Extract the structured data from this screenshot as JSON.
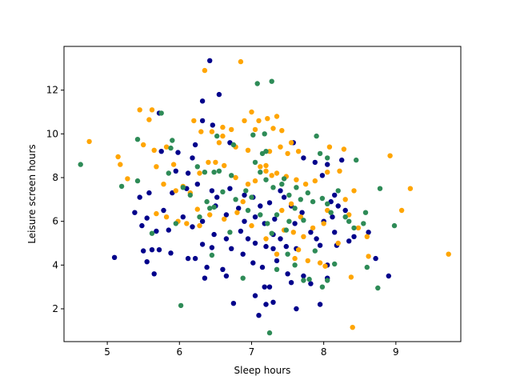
{
  "chart_data": {
    "type": "scatter",
    "title": "",
    "xlabel": "Sleep hours",
    "ylabel": "Leisure screen hours",
    "xlim": [
      4.4,
      9.9
    ],
    "ylim": [
      0.5,
      14.0
    ],
    "xticks": [
      5,
      6,
      7,
      8,
      9
    ],
    "yticks": [
      2,
      4,
      6,
      8,
      10,
      12
    ],
    "grid": false,
    "legend": "none",
    "series": [
      {
        "color": "#00008b",
        "points": [
          [
            6.42,
            13.35
          ],
          [
            6.55,
            11.8
          ],
          [
            6.32,
            11.5
          ],
          [
            5.72,
            10.95
          ],
          [
            6.32,
            10.6
          ],
          [
            6.46,
            10.4
          ],
          [
            5.75,
            9.2
          ],
          [
            6.22,
            9.5
          ],
          [
            6.7,
            9.6
          ],
          [
            5.98,
            9.15
          ],
          [
            6.18,
            8.9
          ],
          [
            5.95,
            8.3
          ],
          [
            6.12,
            8.2
          ],
          [
            5.58,
            7.3
          ],
          [
            5.9,
            7.3
          ],
          [
            6.1,
            7.5
          ],
          [
            6.25,
            7.7
          ],
          [
            6.45,
            7.4
          ],
          [
            6.52,
            7.1
          ],
          [
            6.7,
            7.5
          ],
          [
            5.45,
            7.1
          ],
          [
            5.38,
            6.4
          ],
          [
            5.55,
            6.15
          ],
          [
            5.78,
            6.5
          ],
          [
            6.05,
            6.2
          ],
          [
            6.32,
            6.0
          ],
          [
            6.5,
            6.7
          ],
          [
            6.65,
            6.3
          ],
          [
            6.82,
            6.6
          ],
          [
            5.48,
            5.8
          ],
          [
            5.68,
            5.55
          ],
          [
            5.85,
            5.6
          ],
          [
            6.18,
            5.75
          ],
          [
            6.48,
            5.4
          ],
          [
            6.65,
            5.2
          ],
          [
            6.85,
            5.55
          ],
          [
            6.32,
            4.95
          ],
          [
            6.45,
            4.8
          ],
          [
            6.72,
            4.75
          ],
          [
            5.5,
            4.65
          ],
          [
            5.62,
            4.7
          ],
          [
            5.72,
            4.7
          ],
          [
            5.88,
            4.55
          ],
          [
            6.12,
            4.3
          ],
          [
            6.22,
            4.3
          ],
          [
            6.38,
            3.9
          ],
          [
            6.35,
            3.4
          ],
          [
            6.6,
            3.8
          ],
          [
            6.65,
            3.5
          ],
          [
            5.1,
            4.35
          ],
          [
            5.55,
            4.15
          ],
          [
            5.65,
            3.6
          ],
          [
            6.75,
            2.25
          ],
          [
            7.05,
            2.6
          ],
          [
            7.1,
            1.7
          ],
          [
            7.18,
            3.0
          ],
          [
            7.25,
            3.0
          ],
          [
            7.2,
            2.2
          ],
          [
            7.3,
            2.3
          ],
          [
            7.55,
            3.2
          ],
          [
            7.62,
            2.0
          ],
          [
            7.72,
            3.5
          ],
          [
            7.82,
            3.15
          ],
          [
            7.95,
            2.2
          ],
          [
            8.05,
            3.4
          ],
          [
            8.05,
            4.0
          ],
          [
            7.02,
            7.1
          ],
          [
            7.12,
            6.7
          ],
          [
            7.25,
            6.85
          ],
          [
            7.05,
            6.2
          ],
          [
            7.18,
            5.9
          ],
          [
            7.32,
            6.1
          ],
          [
            6.95,
            5.2
          ],
          [
            7.05,
            5.0
          ],
          [
            7.2,
            4.85
          ],
          [
            7.3,
            4.75
          ],
          [
            7.48,
            4.85
          ],
          [
            7.62,
            4.75
          ],
          [
            7.02,
            4.1
          ],
          [
            7.15,
            3.9
          ],
          [
            7.35,
            4.2
          ],
          [
            7.5,
            3.6
          ],
          [
            7.4,
            7.4
          ],
          [
            7.45,
            7.1
          ],
          [
            7.55,
            6.7
          ],
          [
            7.7,
            6.4
          ],
          [
            7.6,
            5.9
          ],
          [
            7.82,
            5.5
          ],
          [
            7.9,
            5.2
          ],
          [
            7.58,
            9.6
          ],
          [
            7.72,
            8.9
          ],
          [
            7.88,
            8.7
          ],
          [
            7.98,
            8.1
          ],
          [
            8.05,
            8.6
          ],
          [
            8.15,
            7.2
          ],
          [
            8.25,
            8.8
          ],
          [
            8.1,
            6.9
          ],
          [
            8.2,
            6.7
          ],
          [
            8.12,
            6.2
          ],
          [
            8.0,
            6.0
          ],
          [
            8.3,
            6.5
          ],
          [
            8.35,
            5.1
          ],
          [
            8.15,
            5.5
          ],
          [
            8.62,
            5.5
          ],
          [
            8.72,
            4.3
          ],
          [
            8.9,
            3.5
          ],
          [
            8.42,
            5.3
          ],
          [
            7.95,
            4.9
          ],
          [
            8.18,
            4.9
          ],
          [
            7.3,
            5.4
          ],
          [
            7.4,
            5.2
          ],
          [
            6.88,
            4.5
          ],
          [
            6.9,
            6.0
          ],
          [
            6.9,
            7.2
          ]
        ]
      },
      {
        "color": "#ffa500",
        "points": [
          [
            4.75,
            9.65
          ],
          [
            5.15,
            8.95
          ],
          [
            5.18,
            8.6
          ],
          [
            5.28,
            7.95
          ],
          [
            5.45,
            11.1
          ],
          [
            5.58,
            10.65
          ],
          [
            5.62,
            11.1
          ],
          [
            5.5,
            9.5
          ],
          [
            5.65,
            9.25
          ],
          [
            5.82,
            9.4
          ],
          [
            5.68,
            8.5
          ],
          [
            5.92,
            8.6
          ],
          [
            5.78,
            7.7
          ],
          [
            6.05,
            7.6
          ],
          [
            5.95,
            7.4
          ],
          [
            5.68,
            6.35
          ],
          [
            5.82,
            6.2
          ],
          [
            5.98,
            6.0
          ],
          [
            6.1,
            5.9
          ],
          [
            6.28,
            5.8
          ],
          [
            6.2,
            10.6
          ],
          [
            6.3,
            10.1
          ],
          [
            6.35,
            12.9
          ],
          [
            6.45,
            10.1
          ],
          [
            6.6,
            10.3
          ],
          [
            6.72,
            10.2
          ],
          [
            6.85,
            13.3
          ],
          [
            6.9,
            10.6
          ],
          [
            7.0,
            11.0
          ],
          [
            7.1,
            10.6
          ],
          [
            7.22,
            10.7
          ],
          [
            7.35,
            10.8
          ],
          [
            7.42,
            10.15
          ],
          [
            6.78,
            9.4
          ],
          [
            6.95,
            9.25
          ],
          [
            7.25,
            9.2
          ],
          [
            7.4,
            9.4
          ],
          [
            7.55,
            9.6
          ],
          [
            7.65,
            9.2
          ],
          [
            6.5,
            8.7
          ],
          [
            6.62,
            8.55
          ],
          [
            6.78,
            8.0
          ],
          [
            6.95,
            7.7
          ],
          [
            7.05,
            7.85
          ],
          [
            7.12,
            8.5
          ],
          [
            7.2,
            8.55
          ],
          [
            7.28,
            8.1
          ],
          [
            7.35,
            8.2
          ],
          [
            7.48,
            8.05
          ],
          [
            7.62,
            7.9
          ],
          [
            7.75,
            7.7
          ],
          [
            7.88,
            7.85
          ],
          [
            8.05,
            8.25
          ],
          [
            8.22,
            8.3
          ],
          [
            8.28,
            9.3
          ],
          [
            8.08,
            9.4
          ],
          [
            8.42,
            7.4
          ],
          [
            8.3,
            7.0
          ],
          [
            8.05,
            6.5
          ],
          [
            8.0,
            5.9
          ],
          [
            7.42,
            6.5
          ],
          [
            7.55,
            6.8
          ],
          [
            7.68,
            6.2
          ],
          [
            7.58,
            5.5
          ],
          [
            7.72,
            5.3
          ],
          [
            7.85,
            5.7
          ],
          [
            7.65,
            4.7
          ],
          [
            7.78,
            4.2
          ],
          [
            7.95,
            4.1
          ],
          [
            8.02,
            3.95
          ],
          [
            8.2,
            5.0
          ],
          [
            8.35,
            6.3
          ],
          [
            8.48,
            5.7
          ],
          [
            8.6,
            5.3
          ],
          [
            8.62,
            4.4
          ],
          [
            8.92,
            9.0
          ],
          [
            9.08,
            6.5
          ],
          [
            9.2,
            7.5
          ],
          [
            9.73,
            4.5
          ],
          [
            8.38,
            3.45
          ],
          [
            8.4,
            1.15
          ],
          [
            7.6,
            4.3
          ],
          [
            7.35,
            4.5
          ],
          [
            7.2,
            5.2
          ],
          [
            7.0,
            5.8
          ],
          [
            6.8,
            6.4
          ],
          [
            6.62,
            6.1
          ],
          [
            6.42,
            6.3
          ],
          [
            6.25,
            6.55
          ],
          [
            6.15,
            7.3
          ],
          [
            6.28,
            8.2
          ],
          [
            6.4,
            8.7
          ],
          [
            6.55,
            9.6
          ],
          [
            6.6,
            9.9
          ],
          [
            7.05,
            10.2
          ],
          [
            7.3,
            10.25
          ],
          [
            7.5,
            9.1
          ],
          [
            7.2,
            8.3
          ],
          [
            6.88,
            6.9
          ],
          [
            7.45,
            5.6
          ]
        ]
      },
      {
        "color": "#2e8b57",
        "points": [
          [
            4.63,
            8.6
          ],
          [
            5.2,
            7.6
          ],
          [
            5.42,
            7.85
          ],
          [
            5.42,
            9.75
          ],
          [
            5.75,
            10.95
          ],
          [
            5.9,
            9.7
          ],
          [
            5.88,
            9.35
          ],
          [
            5.85,
            8.2
          ],
          [
            6.25,
            8.5
          ],
          [
            6.35,
            8.25
          ],
          [
            6.48,
            8.25
          ],
          [
            6.55,
            8.3
          ],
          [
            6.72,
            8.1
          ],
          [
            6.05,
            7.55
          ],
          [
            6.15,
            7.2
          ],
          [
            6.38,
            6.9
          ],
          [
            6.48,
            6.65
          ],
          [
            5.62,
            5.45
          ],
          [
            5.95,
            5.9
          ],
          [
            6.42,
            6.6
          ],
          [
            6.28,
            6.2
          ],
          [
            6.6,
            7.35
          ],
          [
            6.78,
            7.0
          ],
          [
            6.95,
            6.5
          ],
          [
            6.45,
            4.45
          ],
          [
            6.7,
            5.5
          ],
          [
            6.88,
            3.4
          ],
          [
            7.02,
            9.95
          ],
          [
            7.08,
            12.3
          ],
          [
            7.28,
            12.4
          ],
          [
            7.18,
            10.0
          ],
          [
            6.75,
            9.5
          ],
          [
            6.52,
            9.9
          ],
          [
            7.15,
            9.1
          ],
          [
            7.05,
            8.7
          ],
          [
            7.12,
            8.25
          ],
          [
            7.2,
            7.9
          ],
          [
            7.42,
            7.7
          ],
          [
            7.45,
            7.95
          ],
          [
            7.3,
            7.55
          ],
          [
            7.52,
            7.2
          ],
          [
            7.62,
            7.55
          ],
          [
            7.68,
            7.0
          ],
          [
            7.78,
            7.3
          ],
          [
            7.85,
            6.9
          ],
          [
            7.98,
            7.05
          ],
          [
            8.05,
            6.8
          ],
          [
            8.2,
            7.4
          ],
          [
            8.1,
            6.4
          ],
          [
            8.3,
            6.2
          ],
          [
            7.6,
            6.6
          ],
          [
            7.72,
            6.05
          ],
          [
            7.52,
            6.0
          ],
          [
            7.48,
            5.6
          ],
          [
            7.28,
            5.45
          ],
          [
            7.22,
            5.9
          ],
          [
            7.35,
            6.3
          ],
          [
            7.12,
            6.3
          ],
          [
            7.0,
            7.1
          ],
          [
            6.92,
            7.4
          ],
          [
            7.72,
            3.3
          ],
          [
            7.8,
            3.35
          ],
          [
            7.88,
            4.65
          ],
          [
            7.98,
            3.0
          ],
          [
            8.05,
            3.3
          ],
          [
            8.15,
            4.05
          ],
          [
            8.35,
            6.0
          ],
          [
            8.42,
            5.7
          ],
          [
            8.45,
            8.8
          ],
          [
            8.55,
            5.9
          ],
          [
            8.58,
            6.4
          ],
          [
            8.6,
            3.9
          ],
          [
            8.75,
            2.95
          ],
          [
            8.78,
            7.5
          ],
          [
            8.98,
            5.8
          ],
          [
            7.9,
            9.9
          ],
          [
            7.95,
            9.1
          ],
          [
            8.05,
            8.9
          ],
          [
            7.6,
            4.0
          ],
          [
            7.5,
            4.5
          ],
          [
            7.35,
            3.8
          ],
          [
            7.25,
            0.9
          ],
          [
            6.02,
            2.15
          ],
          [
            7.2,
            9.2
          ]
        ]
      }
    ]
  }
}
